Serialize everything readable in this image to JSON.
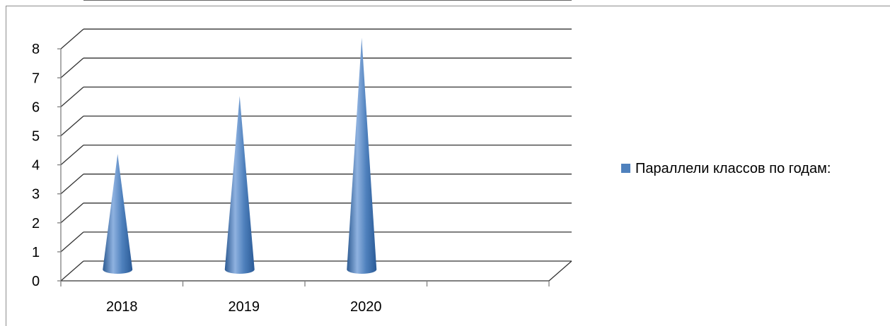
{
  "chart_data": {
    "type": "bar",
    "shape": "3d-cone",
    "categories": [
      "2018",
      "2019",
      "2020",
      ""
    ],
    "series": [
      {
        "name": "Параллели классов по годам:",
        "values": [
          4,
          6,
          8,
          null
        ]
      }
    ],
    "title": "",
    "xlabel": "",
    "ylabel": "",
    "ylim": [
      0,
      8
    ],
    "yticks": [
      "0",
      "1",
      "2",
      "3",
      "4",
      "5",
      "6",
      "7",
      "8"
    ],
    "grid": true,
    "legend_position": "right"
  },
  "colors": {
    "series": "#4f81bd",
    "series_dark": "#2c5a92",
    "series_light": "#8fb2e0",
    "grid": "#333333",
    "axis": "#808080"
  }
}
